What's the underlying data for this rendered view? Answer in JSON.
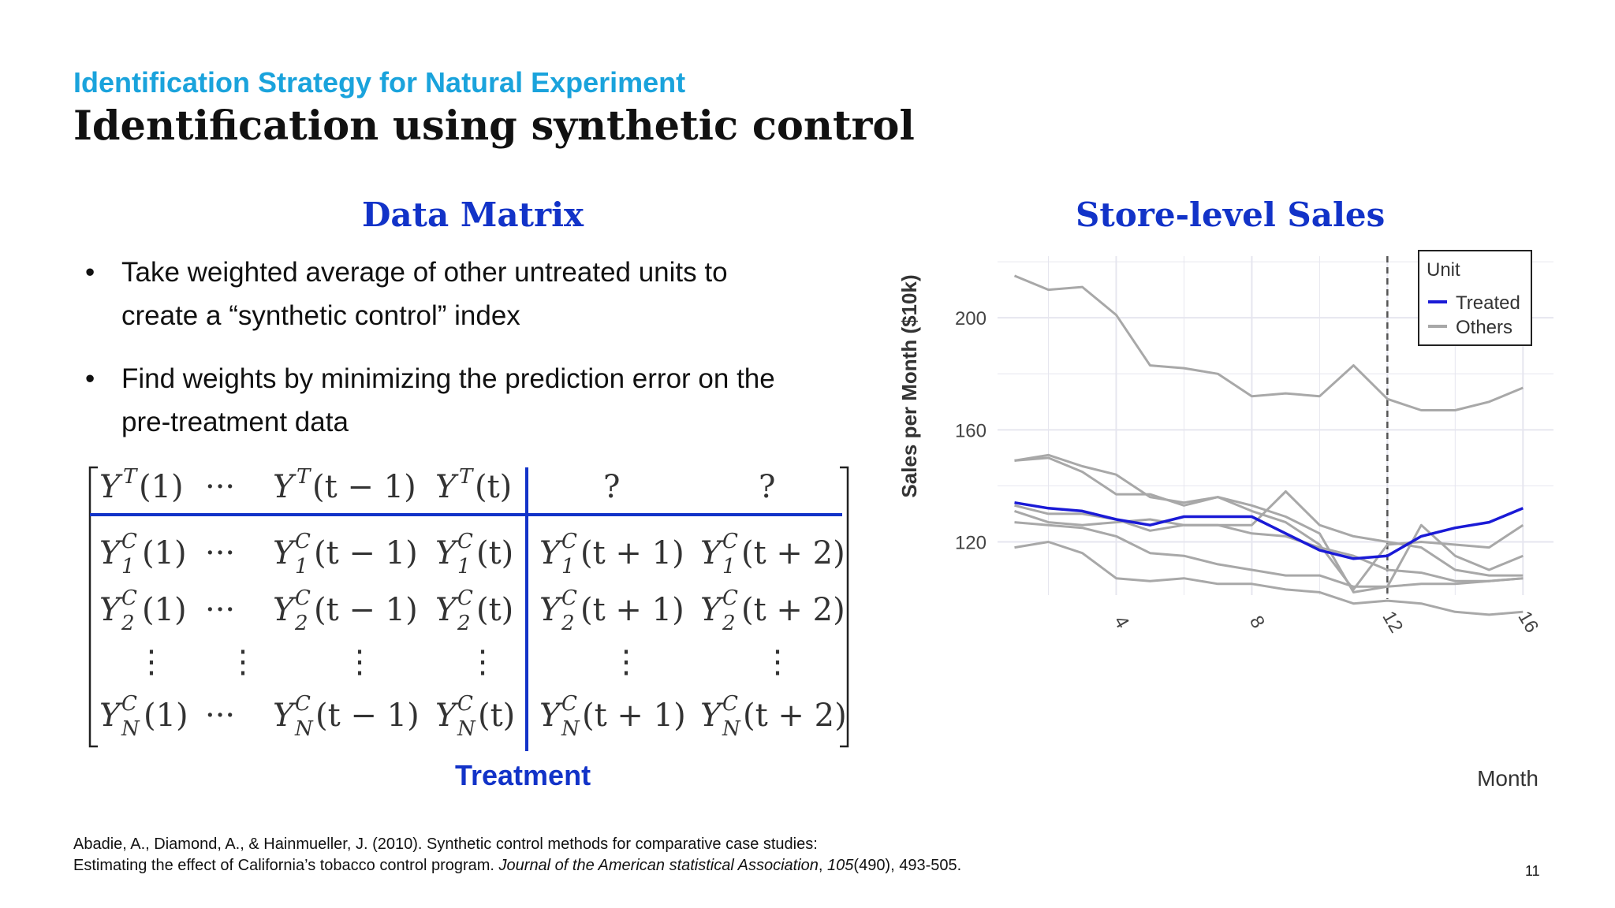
{
  "header": {
    "subtitle": "Identification Strategy for Natural Experiment",
    "title": "Identification using synthetic control"
  },
  "left": {
    "heading": "Data Matrix",
    "bullets": [
      {
        "marker": "•",
        "lines": [
          "Take weighted average of other untreated units to",
          "create a “synthetic control” index"
        ]
      },
      {
        "marker": "•",
        "lines": [
          "Find weights by minimizing the prediction error on the",
          "pre-treatment data"
        ]
      }
    ],
    "matrix": {
      "treated_row": {
        "base": "Y",
        "sup": "T",
        "cols": [
          "(1)",
          "···",
          "(t − 1)",
          "(t)",
          "?",
          "?"
        ]
      },
      "control_rows": [
        {
          "sub": "1",
          "sup": "C"
        },
        {
          "sub": "2",
          "sup": "C"
        },
        {
          "sub": "N",
          "sup": "C"
        }
      ],
      "col_args": [
        "(1)",
        "(t − 1)",
        "(t)",
        "(t + 1)",
        "(t + 2)"
      ],
      "dots_h": "···",
      "dots_v": "⋮"
    },
    "treatment_label": "Treatment"
  },
  "right": {
    "heading": "Store-level Sales"
  },
  "chart_data": {
    "type": "line",
    "title": "",
    "xlabel": "Month",
    "ylabel": "Sales per Month ($10k)",
    "x": [
      1,
      2,
      3,
      4,
      5,
      6,
      7,
      8,
      9,
      10,
      11,
      12,
      13,
      14,
      15,
      16
    ],
    "xticks": [
      4,
      8,
      12,
      16
    ],
    "yticks": [
      120,
      160,
      200
    ],
    "xlim": [
      0.5,
      16.9
    ],
    "ylim": [
      101,
      222
    ],
    "vline": 12,
    "grid": true,
    "legend": {
      "title": "Unit",
      "position": "top-right",
      "entries": [
        "Treated",
        "Others"
      ]
    },
    "colors": {
      "Treated": "#1a1ad6",
      "Others": "#a8a8a8",
      "grid": "#e6e6ef",
      "vline": "#555555"
    },
    "series": [
      {
        "name": "Treated",
        "values": [
          134,
          132,
          131,
          128,
          126,
          129,
          129,
          129,
          123,
          117,
          114,
          115,
          122,
          125,
          127,
          132
        ]
      },
      {
        "name": "Others",
        "values": [
          215,
          210,
          211,
          201,
          183,
          182,
          180,
          172,
          173,
          172,
          183,
          171,
          167,
          167,
          170,
          175
        ]
      },
      {
        "name": "Others",
        "values": [
          149,
          150,
          145,
          137,
          137,
          133,
          136,
          133,
          129,
          123,
          102,
          104,
          126,
          115,
          110,
          115
        ]
      },
      {
        "name": "Others",
        "values": [
          149,
          151,
          147,
          144,
          136,
          134,
          136,
          131,
          127,
          119,
          103,
          119,
          120,
          119,
          118,
          126
        ]
      },
      {
        "name": "Others",
        "values": [
          133,
          130,
          130,
          128,
          124,
          126,
          126,
          126,
          138,
          126,
          122,
          120,
          118,
          110,
          108,
          108
        ]
      },
      {
        "name": "Others",
        "values": [
          131,
          127,
          126,
          127,
          128,
          126,
          126,
          123,
          122,
          118,
          115,
          110,
          109,
          106,
          106,
          107
        ]
      },
      {
        "name": "Others",
        "values": [
          127,
          126,
          125,
          122,
          116,
          115,
          112,
          110,
          108,
          108,
          104,
          104,
          105,
          105,
          106,
          107
        ]
      },
      {
        "name": "Others",
        "values": [
          118,
          120,
          116,
          107,
          106,
          107,
          105,
          105,
          103,
          102,
          98,
          99,
          98,
          95,
          94,
          95
        ]
      }
    ]
  },
  "footer": {
    "ref_line1": "Abadie, A., Diamond, A., & Hainmueller, J. (2010). Synthetic control methods for comparative case studies:",
    "ref_line2_plain": "Estimating the effect of California’s tobacco control program. ",
    "ref_line2_journal": "Journal of the American statistical Association",
    "ref_line2_sep": ", ",
    "ref_line2_volume": "105",
    "ref_line2_rest": "(490), 493-505.",
    "page_number": "11"
  }
}
